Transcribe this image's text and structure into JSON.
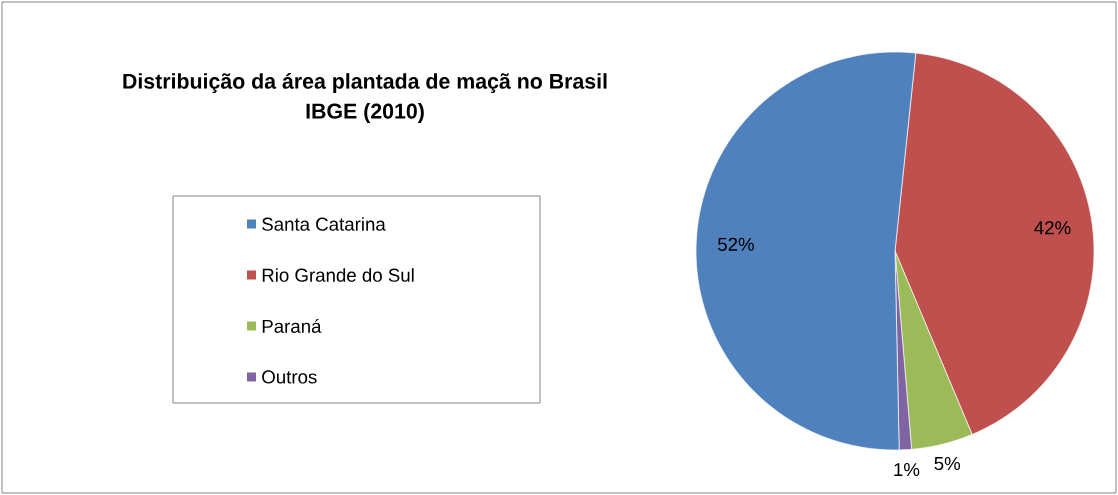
{
  "chart_data": {
    "type": "pie",
    "title": "Distribuição da área plantada de maçã no Brasil",
    "subtitle": "IBGE (2010)",
    "categories": [
      "Santa Catarina",
      "Rio Grande do Sul",
      "Paraná",
      "Outros"
    ],
    "values": [
      52,
      42,
      5,
      1
    ],
    "value_labels": [
      "52%",
      "42%",
      "5%",
      "1%"
    ],
    "colors": [
      "#4f81bd",
      "#c0504d",
      "#9bbb59",
      "#8064a2"
    ],
    "legend": "left"
  }
}
